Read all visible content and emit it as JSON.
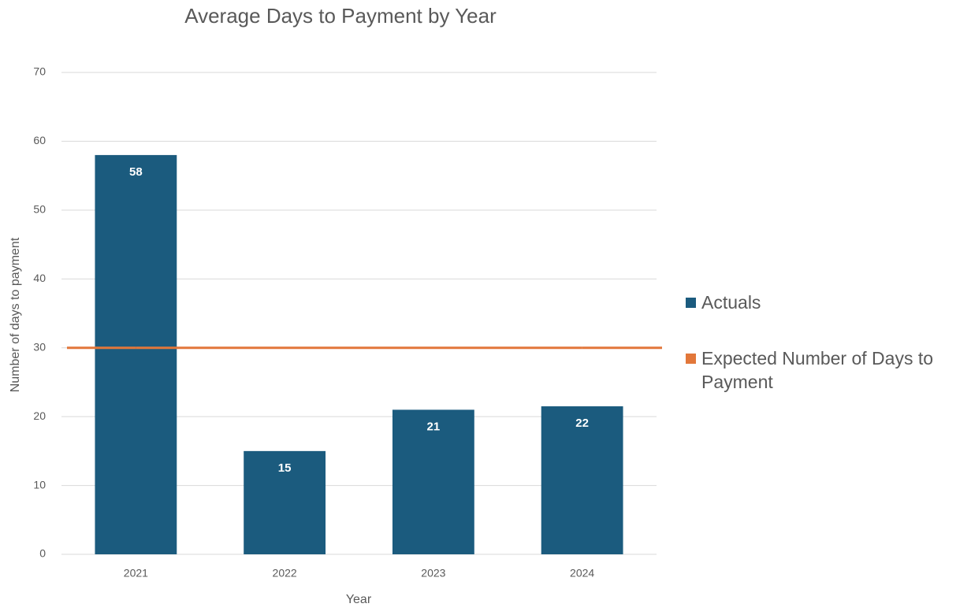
{
  "chart_data": {
    "type": "bar",
    "title": "Average Days to Payment by Year",
    "x_label": "Year",
    "y_label": "Number of days to payment",
    "categories": [
      "2021",
      "2022",
      "2023",
      "2024"
    ],
    "series": [
      {
        "name": "Actuals",
        "type": "bar",
        "color": "#1b5b7e",
        "values": [
          58,
          15,
          21,
          21.5
        ],
        "value_labels": [
          "58",
          "15",
          "21",
          "22"
        ]
      },
      {
        "name": "Expected Number of Days to Payment",
        "type": "line",
        "color": "#e2773a",
        "values": [
          30,
          30,
          30,
          30
        ]
      }
    ],
    "ylim": [
      0,
      70
    ],
    "yticks": [
      0,
      10,
      20,
      30,
      40,
      50,
      60,
      70
    ],
    "grid": true,
    "legend": "right"
  }
}
